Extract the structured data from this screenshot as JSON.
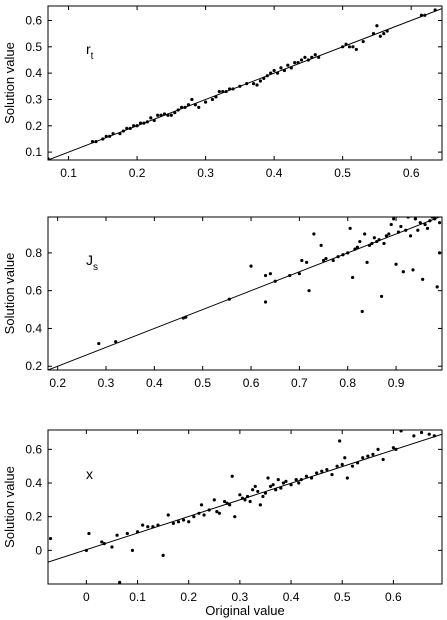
{
  "chart_data": [
    {
      "type": "scatter",
      "ylabel": "Solution value",
      "xlabel": "",
      "label_main": "r",
      "label_sub": "t",
      "xlim": [
        0.07,
        0.645
      ],
      "ylim": [
        0.07,
        0.655
      ],
      "xticks": [
        0.1,
        0.2,
        0.3,
        0.4,
        0.5,
        0.6
      ],
      "xtick_labels": [
        "0.1",
        "0.2",
        "0.3",
        "0.4",
        "0.5",
        "0.6"
      ],
      "yticks": [
        0.1,
        0.2,
        0.3,
        0.4,
        0.5,
        0.6
      ],
      "ytick_labels": [
        "0.1",
        "0.2",
        "0.3",
        "0.4",
        "0.5",
        "0.6"
      ],
      "reference_line": {
        "x": [
          0.07,
          0.645
        ],
        "y": [
          0.07,
          0.645
        ]
      },
      "points": [
        [
          0.07,
          0.075
        ],
        [
          0.135,
          0.14
        ],
        [
          0.14,
          0.14
        ],
        [
          0.15,
          0.15
        ],
        [
          0.155,
          0.16
        ],
        [
          0.16,
          0.16
        ],
        [
          0.165,
          0.17
        ],
        [
          0.175,
          0.17
        ],
        [
          0.18,
          0.18
        ],
        [
          0.185,
          0.19
        ],
        [
          0.19,
          0.19
        ],
        [
          0.195,
          0.2
        ],
        [
          0.2,
          0.2
        ],
        [
          0.205,
          0.21
        ],
        [
          0.21,
          0.21
        ],
        [
          0.215,
          0.215
        ],
        [
          0.22,
          0.23
        ],
        [
          0.225,
          0.22
        ],
        [
          0.23,
          0.24
        ],
        [
          0.235,
          0.24
        ],
        [
          0.24,
          0.245
        ],
        [
          0.245,
          0.24
        ],
        [
          0.25,
          0.24
        ],
        [
          0.255,
          0.25
        ],
        [
          0.26,
          0.26
        ],
        [
          0.265,
          0.27
        ],
        [
          0.27,
          0.27
        ],
        [
          0.275,
          0.28
        ],
        [
          0.28,
          0.3
        ],
        [
          0.285,
          0.28
        ],
        [
          0.29,
          0.27
        ],
        [
          0.3,
          0.29
        ],
        [
          0.31,
          0.3
        ],
        [
          0.315,
          0.31
        ],
        [
          0.32,
          0.33
        ],
        [
          0.325,
          0.33
        ],
        [
          0.33,
          0.33
        ],
        [
          0.335,
          0.34
        ],
        [
          0.34,
          0.34
        ],
        [
          0.35,
          0.35
        ],
        [
          0.36,
          0.36
        ],
        [
          0.37,
          0.36
        ],
        [
          0.375,
          0.355
        ],
        [
          0.38,
          0.37
        ],
        [
          0.385,
          0.38
        ],
        [
          0.39,
          0.39
        ],
        [
          0.395,
          0.4
        ],
        [
          0.4,
          0.41
        ],
        [
          0.405,
          0.4
        ],
        [
          0.41,
          0.42
        ],
        [
          0.415,
          0.41
        ],
        [
          0.42,
          0.43
        ],
        [
          0.425,
          0.42
        ],
        [
          0.43,
          0.44
        ],
        [
          0.435,
          0.44
        ],
        [
          0.44,
          0.45
        ],
        [
          0.445,
          0.46
        ],
        [
          0.45,
          0.45
        ],
        [
          0.455,
          0.46
        ],
        [
          0.46,
          0.47
        ],
        [
          0.465,
          0.46
        ],
        [
          0.5,
          0.5
        ],
        [
          0.505,
          0.51
        ],
        [
          0.51,
          0.5
        ],
        [
          0.515,
          0.5
        ],
        [
          0.52,
          0.49
        ],
        [
          0.53,
          0.52
        ],
        [
          0.545,
          0.55
        ],
        [
          0.55,
          0.58
        ],
        [
          0.555,
          0.54
        ],
        [
          0.56,
          0.55
        ],
        [
          0.565,
          0.56
        ],
        [
          0.615,
          0.62
        ],
        [
          0.62,
          0.62
        ],
        [
          0.635,
          0.64
        ]
      ]
    },
    {
      "type": "scatter",
      "ylabel": "Solution value",
      "xlabel": "",
      "label_main": "J",
      "label_sub": "s",
      "xlim": [
        0.18,
        0.995
      ],
      "ylim": [
        0.18,
        0.99
      ],
      "xticks": [
        0.2,
        0.3,
        0.4,
        0.5,
        0.6,
        0.7,
        0.8,
        0.9
      ],
      "xtick_labels": [
        "0.2",
        "0.3",
        "0.4",
        "0.5",
        "0.6",
        "0.7",
        "0.8",
        "0.9"
      ],
      "yticks": [
        0.2,
        0.4,
        0.6,
        0.8
      ],
      "ytick_labels": [
        "0.2",
        "0.4",
        "0.6",
        "0.8"
      ],
      "reference_line": {
        "x": [
          0.18,
          0.995
        ],
        "y": [
          0.18,
          0.995
        ]
      },
      "points": [
        [
          0.285,
          0.32
        ],
        [
          0.32,
          0.33
        ],
        [
          0.46,
          0.455
        ],
        [
          0.465,
          0.46
        ],
        [
          0.555,
          0.555
        ],
        [
          0.6,
          0.73
        ],
        [
          0.63,
          0.54
        ],
        [
          0.63,
          0.68
        ],
        [
          0.64,
          0.69
        ],
        [
          0.65,
          0.65
        ],
        [
          0.68,
          0.68
        ],
        [
          0.7,
          0.69
        ],
        [
          0.705,
          0.76
        ],
        [
          0.715,
          0.75
        ],
        [
          0.72,
          0.6
        ],
        [
          0.73,
          0.9
        ],
        [
          0.745,
          0.84
        ],
        [
          0.75,
          0.76
        ],
        [
          0.755,
          0.77
        ],
        [
          0.77,
          0.76
        ],
        [
          0.78,
          0.78
        ],
        [
          0.79,
          0.79
        ],
        [
          0.8,
          0.8
        ],
        [
          0.805,
          0.93
        ],
        [
          0.81,
          0.67
        ],
        [
          0.815,
          0.82
        ],
        [
          0.82,
          0.83
        ],
        [
          0.825,
          0.86
        ],
        [
          0.83,
          0.49
        ],
        [
          0.835,
          0.9
        ],
        [
          0.84,
          0.75
        ],
        [
          0.845,
          0.84
        ],
        [
          0.85,
          0.85
        ],
        [
          0.855,
          0.88
        ],
        [
          0.86,
          0.86
        ],
        [
          0.865,
          0.87
        ],
        [
          0.87,
          0.57
        ],
        [
          0.875,
          0.85
        ],
        [
          0.88,
          0.89
        ],
        [
          0.885,
          0.9
        ],
        [
          0.89,
          0.95
        ],
        [
          0.895,
          0.98
        ],
        [
          0.9,
          0.74
        ],
        [
          0.905,
          0.91
        ],
        [
          0.91,
          0.94
        ],
        [
          0.915,
          0.7
        ],
        [
          0.92,
          0.92
        ],
        [
          0.925,
          0.99
        ],
        [
          0.93,
          0.89
        ],
        [
          0.935,
          0.71
        ],
        [
          0.94,
          0.98
        ],
        [
          0.945,
          0.92
        ],
        [
          0.95,
          0.96
        ],
        [
          0.955,
          0.66
        ],
        [
          0.96,
          0.95
        ],
        [
          0.965,
          0.93
        ],
        [
          0.97,
          0.97
        ],
        [
          0.975,
          0.99
        ],
        [
          0.98,
          0.98
        ],
        [
          0.985,
          0.62
        ],
        [
          0.99,
          0.96
        ],
        [
          0.99,
          0.8
        ]
      ]
    },
    {
      "type": "scatter",
      "ylabel": "Solution value",
      "xlabel": "Original value",
      "label_main": "x",
      "label_sub": "",
      "xlim": [
        -0.075,
        0.695
      ],
      "ylim": [
        -0.2,
        0.715
      ],
      "xticks": [
        0,
        0.1,
        0.2,
        0.3,
        0.4,
        0.5,
        0.6
      ],
      "xtick_labels": [
        "0",
        "0.1",
        "0.2",
        "0.3",
        "0.4",
        "0.5",
        "0.6"
      ],
      "yticks": [
        0,
        0.2,
        0.4,
        0.6
      ],
      "ytick_labels": [
        "0",
        "0.2",
        "0.4",
        "0.6"
      ],
      "reference_line": {
        "x": [
          -0.075,
          0.695
        ],
        "y": [
          -0.07,
          0.69
        ]
      },
      "points": [
        [
          -0.07,
          0.07
        ],
        [
          0.0,
          0.0
        ],
        [
          0.005,
          0.1
        ],
        [
          0.03,
          0.05
        ],
        [
          0.035,
          0.04
        ],
        [
          0.05,
          0.02
        ],
        [
          0.06,
          0.09
        ],
        [
          0.065,
          -0.19
        ],
        [
          0.08,
          0.1
        ],
        [
          0.09,
          0.0
        ],
        [
          0.1,
          0.11
        ],
        [
          0.11,
          0.15
        ],
        [
          0.12,
          0.14
        ],
        [
          0.13,
          0.14
        ],
        [
          0.14,
          0.15
        ],
        [
          0.15,
          -0.03
        ],
        [
          0.16,
          0.21
        ],
        [
          0.17,
          0.16
        ],
        [
          0.18,
          0.17
        ],
        [
          0.19,
          0.18
        ],
        [
          0.2,
          0.17
        ],
        [
          0.21,
          0.2
        ],
        [
          0.22,
          0.22
        ],
        [
          0.225,
          0.27
        ],
        [
          0.23,
          0.21
        ],
        [
          0.24,
          0.24
        ],
        [
          0.25,
          0.3
        ],
        [
          0.255,
          0.23
        ],
        [
          0.26,
          0.22
        ],
        [
          0.27,
          0.29
        ],
        [
          0.275,
          0.28
        ],
        [
          0.28,
          0.27
        ],
        [
          0.285,
          0.44
        ],
        [
          0.29,
          0.2
        ],
        [
          0.3,
          0.33
        ],
        [
          0.305,
          0.31
        ],
        [
          0.31,
          0.3
        ],
        [
          0.315,
          0.32
        ],
        [
          0.32,
          0.29
        ],
        [
          0.325,
          0.36
        ],
        [
          0.33,
          0.38
        ],
        [
          0.335,
          0.35
        ],
        [
          0.34,
          0.27
        ],
        [
          0.345,
          0.32
        ],
        [
          0.35,
          0.34
        ],
        [
          0.355,
          0.43
        ],
        [
          0.36,
          0.38
        ],
        [
          0.365,
          0.39
        ],
        [
          0.37,
          0.36
        ],
        [
          0.375,
          0.42
        ],
        [
          0.38,
          0.37
        ],
        [
          0.385,
          0.4
        ],
        [
          0.39,
          0.41
        ],
        [
          0.4,
          0.39
        ],
        [
          0.41,
          0.42
        ],
        [
          0.415,
          0.4
        ],
        [
          0.42,
          0.42
        ],
        [
          0.43,
          0.44
        ],
        [
          0.44,
          0.43
        ],
        [
          0.45,
          0.46
        ],
        [
          0.46,
          0.47
        ],
        [
          0.47,
          0.48
        ],
        [
          0.48,
          0.45
        ],
        [
          0.49,
          0.5
        ],
        [
          0.495,
          0.65
        ],
        [
          0.5,
          0.51
        ],
        [
          0.505,
          0.55
        ],
        [
          0.51,
          0.43
        ],
        [
          0.52,
          0.5
        ],
        [
          0.53,
          0.52
        ],
        [
          0.54,
          0.55
        ],
        [
          0.55,
          0.56
        ],
        [
          0.56,
          0.57
        ],
        [
          0.57,
          0.6
        ],
        [
          0.58,
          0.54
        ],
        [
          0.6,
          0.61
        ],
        [
          0.605,
          0.6
        ],
        [
          0.615,
          0.71
        ],
        [
          0.64,
          0.68
        ],
        [
          0.655,
          0.7
        ],
        [
          0.67,
          0.69
        ],
        [
          0.68,
          0.68
        ]
      ]
    }
  ]
}
